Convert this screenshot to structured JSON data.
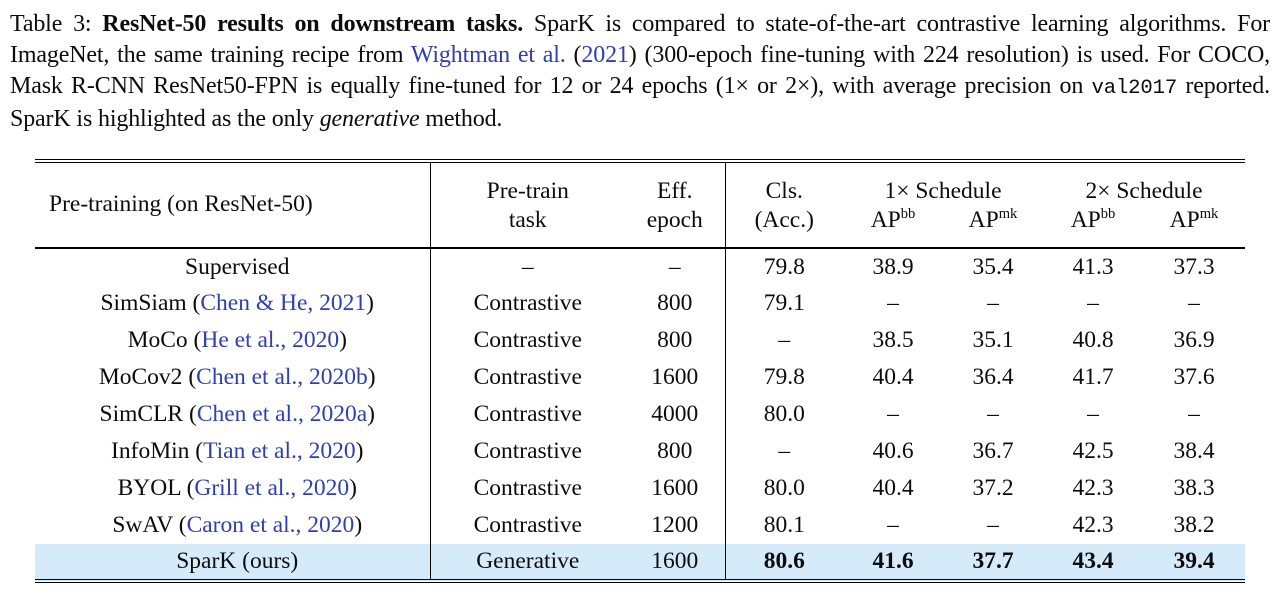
{
  "page": {
    "background": "#ffffff",
    "text_color": "#0c0c0c",
    "link_color": "#2f3fae",
    "highlight_color": "#d6ebfa"
  },
  "caption": {
    "segments": [
      {
        "text": "Table 3: ",
        "style": "plain"
      },
      {
        "text": "ResNet-50 results on downstream tasks.",
        "style": "bold"
      },
      {
        "text": " SparK is compared to state-of-the-art contrastive learning algorithms. For ImageNet, the same training recipe from ",
        "style": "plain"
      },
      {
        "text": "Wightman et al.",
        "style": "link"
      },
      {
        "text": " (",
        "style": "plain"
      },
      {
        "text": "2021",
        "style": "link"
      },
      {
        "text": ") (300-epoch fine-tuning with 224 resolution) is used. For COCO, Mask R-CNN ResNet50-FPN is equally fine-tuned for 12 or 24 epochs (1× or 2×), with average precision on ",
        "style": "plain"
      },
      {
        "text": "val2017",
        "style": "mono"
      },
      {
        "text": " reported. SparK is highlighted as the only ",
        "style": "plain"
      },
      {
        "text": "generative",
        "style": "italic"
      },
      {
        "text": " method.",
        "style": "plain"
      }
    ]
  },
  "table": {
    "header": {
      "pretraining": "Pre-training (on ResNet-50)",
      "cols": [
        {
          "line1": "Pre-train",
          "line2": "task"
        },
        {
          "line1": "Eff.",
          "line2": "epoch"
        },
        {
          "line1": "Cls.",
          "line2": "(Acc.)"
        }
      ],
      "groups": [
        {
          "label": "1× Schedule",
          "sub": [
            {
              "base": "AP",
              "sup": "bb"
            },
            {
              "base": "AP",
              "sup": "mk"
            }
          ]
        },
        {
          "label": "2× Schedule",
          "sub": [
            {
              "base": "AP",
              "sup": "bb"
            },
            {
              "base": "AP",
              "sup": "mk"
            }
          ]
        }
      ]
    },
    "rows": [
      {
        "method": {
          "label": "Supervised",
          "cite": null
        },
        "task": "–",
        "epoch": "–",
        "acc": "79.8",
        "ap": [
          "38.9",
          "35.4",
          "41.3",
          "37.3"
        ],
        "highlight": false,
        "bold_values": false
      },
      {
        "method": {
          "label": "SimSiam",
          "cite": "Chen & He, 2021"
        },
        "task": "Contrastive",
        "epoch": "800",
        "acc": "79.1",
        "ap": [
          "–",
          "–",
          "–",
          "–"
        ],
        "highlight": false,
        "bold_values": false
      },
      {
        "method": {
          "label": "MoCo",
          "cite": "He et al., 2020"
        },
        "task": "Contrastive",
        "epoch": "800",
        "acc": "–",
        "ap": [
          "38.5",
          "35.1",
          "40.8",
          "36.9"
        ],
        "highlight": false,
        "bold_values": false
      },
      {
        "method": {
          "label": "MoCov2",
          "cite": "Chen et al., 2020b"
        },
        "task": "Contrastive",
        "epoch": "1600",
        "acc": "79.8",
        "ap": [
          "40.4",
          "36.4",
          "41.7",
          "37.6"
        ],
        "highlight": false,
        "bold_values": false
      },
      {
        "method": {
          "label": "SimCLR",
          "cite": "Chen et al., 2020a"
        },
        "task": "Contrastive",
        "epoch": "4000",
        "acc": "80.0",
        "ap": [
          "–",
          "–",
          "–",
          "–"
        ],
        "highlight": false,
        "bold_values": false
      },
      {
        "method": {
          "label": "InfoMin",
          "cite": "Tian et al., 2020"
        },
        "task": "Contrastive",
        "epoch": "800",
        "acc": "–",
        "ap": [
          "40.6",
          "36.7",
          "42.5",
          "38.4"
        ],
        "highlight": false,
        "bold_values": false
      },
      {
        "method": {
          "label": "BYOL",
          "cite": "Grill et al., 2020"
        },
        "task": "Contrastive",
        "epoch": "1600",
        "acc": "80.0",
        "ap": [
          "40.4",
          "37.2",
          "42.3",
          "38.3"
        ],
        "highlight": false,
        "bold_values": false
      },
      {
        "method": {
          "label": "SwAV",
          "cite": "Caron et al., 2020"
        },
        "task": "Contrastive",
        "epoch": "1200",
        "acc": "80.1",
        "ap": [
          "–",
          "–",
          "42.3",
          "38.2"
        ],
        "highlight": false,
        "bold_values": false
      },
      {
        "method": {
          "label": "SparK (ours)",
          "cite": null
        },
        "task": "Generative",
        "epoch": "1600",
        "acc": "80.6",
        "ap": [
          "41.6",
          "37.7",
          "43.4",
          "39.4"
        ],
        "highlight": true,
        "bold_values": true
      }
    ]
  }
}
